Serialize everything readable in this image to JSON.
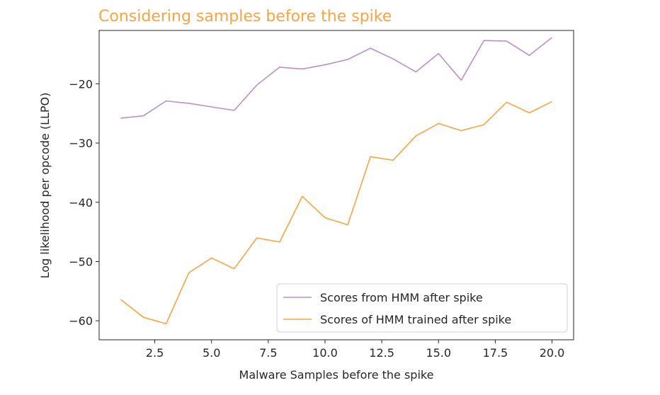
{
  "chart_data": {
    "type": "line",
    "title": "Considering samples before the spike",
    "xlabel": "Malware Samples before the spike",
    "ylabel": "Log likelihood per opcode (LLPO)",
    "xlim": [
      0.05,
      20.95
    ],
    "ylim": [
      -63.2,
      -11.0
    ],
    "xticks": [
      2.5,
      5.0,
      7.5,
      10.0,
      12.5,
      15.0,
      17.5,
      20.0
    ],
    "xtick_labels": [
      "2.5",
      "5.0",
      "7.5",
      "10.0",
      "12.5",
      "15.0",
      "17.5",
      "20.0"
    ],
    "yticks": [
      -60,
      -50,
      -40,
      -30,
      -20
    ],
    "ytick_labels": [
      "−60",
      "−50",
      "−40",
      "−30",
      "−20"
    ],
    "grid": false,
    "legend_position": "lower-right",
    "series": [
      {
        "name": "Scores from HMM after spike",
        "color": "#b98fcb",
        "x": [
          1,
          2,
          3,
          4,
          5,
          6,
          7,
          8,
          9,
          10,
          11,
          12,
          13,
          14,
          15,
          16,
          17,
          18,
          19,
          20
        ],
        "y": [
          -25.8,
          -25.4,
          -22.9,
          -23.3,
          -23.9,
          -24.5,
          -20.2,
          -17.2,
          -17.5,
          -16.8,
          -15.9,
          -14.0,
          -15.8,
          -18.0,
          -14.9,
          -19.4,
          -12.7,
          -12.8,
          -15.2,
          -12.2
        ]
      },
      {
        "name": "Scores of HMM trained after spike",
        "color": "#f8a443",
        "x": [
          1,
          2,
          3,
          4,
          5,
          6,
          7,
          8,
          9,
          10,
          11,
          12,
          13,
          14,
          15,
          16,
          17,
          18,
          19,
          20
        ],
        "y": [
          -56.4,
          -59.4,
          -60.5,
          -51.9,
          -49.4,
          -51.2,
          -46.0,
          -46.7,
          -39.0,
          -42.6,
          -43.8,
          -32.3,
          -32.9,
          -28.8,
          -26.7,
          -27.9,
          -26.9,
          -23.1,
          -24.9,
          -23.0
        ]
      }
    ]
  }
}
